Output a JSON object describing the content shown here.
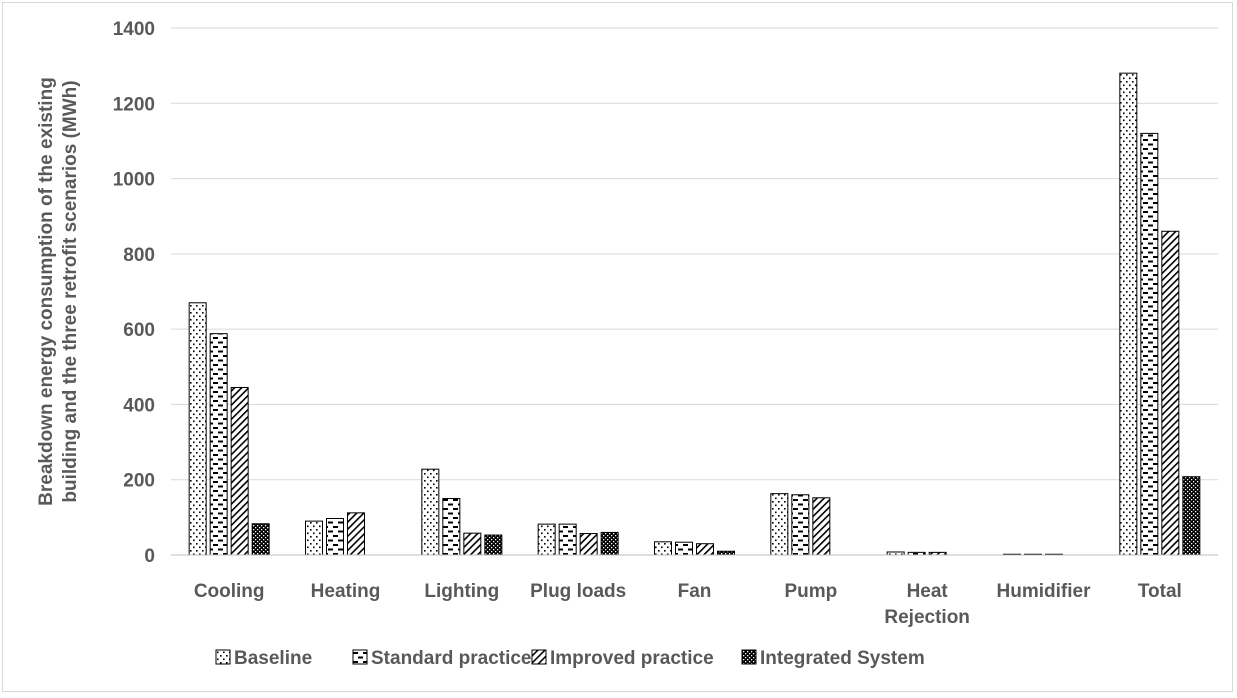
{
  "chart_data": {
    "type": "bar",
    "title": "",
    "xlabel": "",
    "ylabel_lines": [
      "Breakdown energy consumption of the existing",
      "building and the three retrofit scenarios (MWh)"
    ],
    "ylim": [
      0,
      1400
    ],
    "yticks": [
      0,
      200,
      400,
      600,
      800,
      1000,
      1200,
      1400
    ],
    "grid": "horizontal",
    "legend_position": "bottom",
    "categories": [
      [
        "Cooling"
      ],
      [
        "Heating"
      ],
      [
        "Lighting"
      ],
      [
        "Plug loads"
      ],
      [
        "Fan"
      ],
      [
        "Pump"
      ],
      [
        "Heat",
        "Rejection"
      ],
      [
        "Humidifier"
      ],
      [
        "Total"
      ]
    ],
    "series": [
      {
        "name": "Baseline",
        "pattern": "dots",
        "values": [
          670,
          90,
          228,
          82,
          35,
          163,
          8,
          2,
          1280
        ]
      },
      {
        "name": "Standard practice",
        "pattern": "dashes",
        "values": [
          588,
          97,
          150,
          82,
          34,
          160,
          7,
          2,
          1120
        ]
      },
      {
        "name": "Improved practice",
        "pattern": "diagonal",
        "values": [
          445,
          112,
          58,
          57,
          30,
          152,
          7,
          2,
          860
        ]
      },
      {
        "name": "Integrated System",
        "pattern": "dense",
        "values": [
          83,
          0,
          53,
          60,
          10,
          0,
          0,
          0,
          208
        ]
      }
    ]
  }
}
